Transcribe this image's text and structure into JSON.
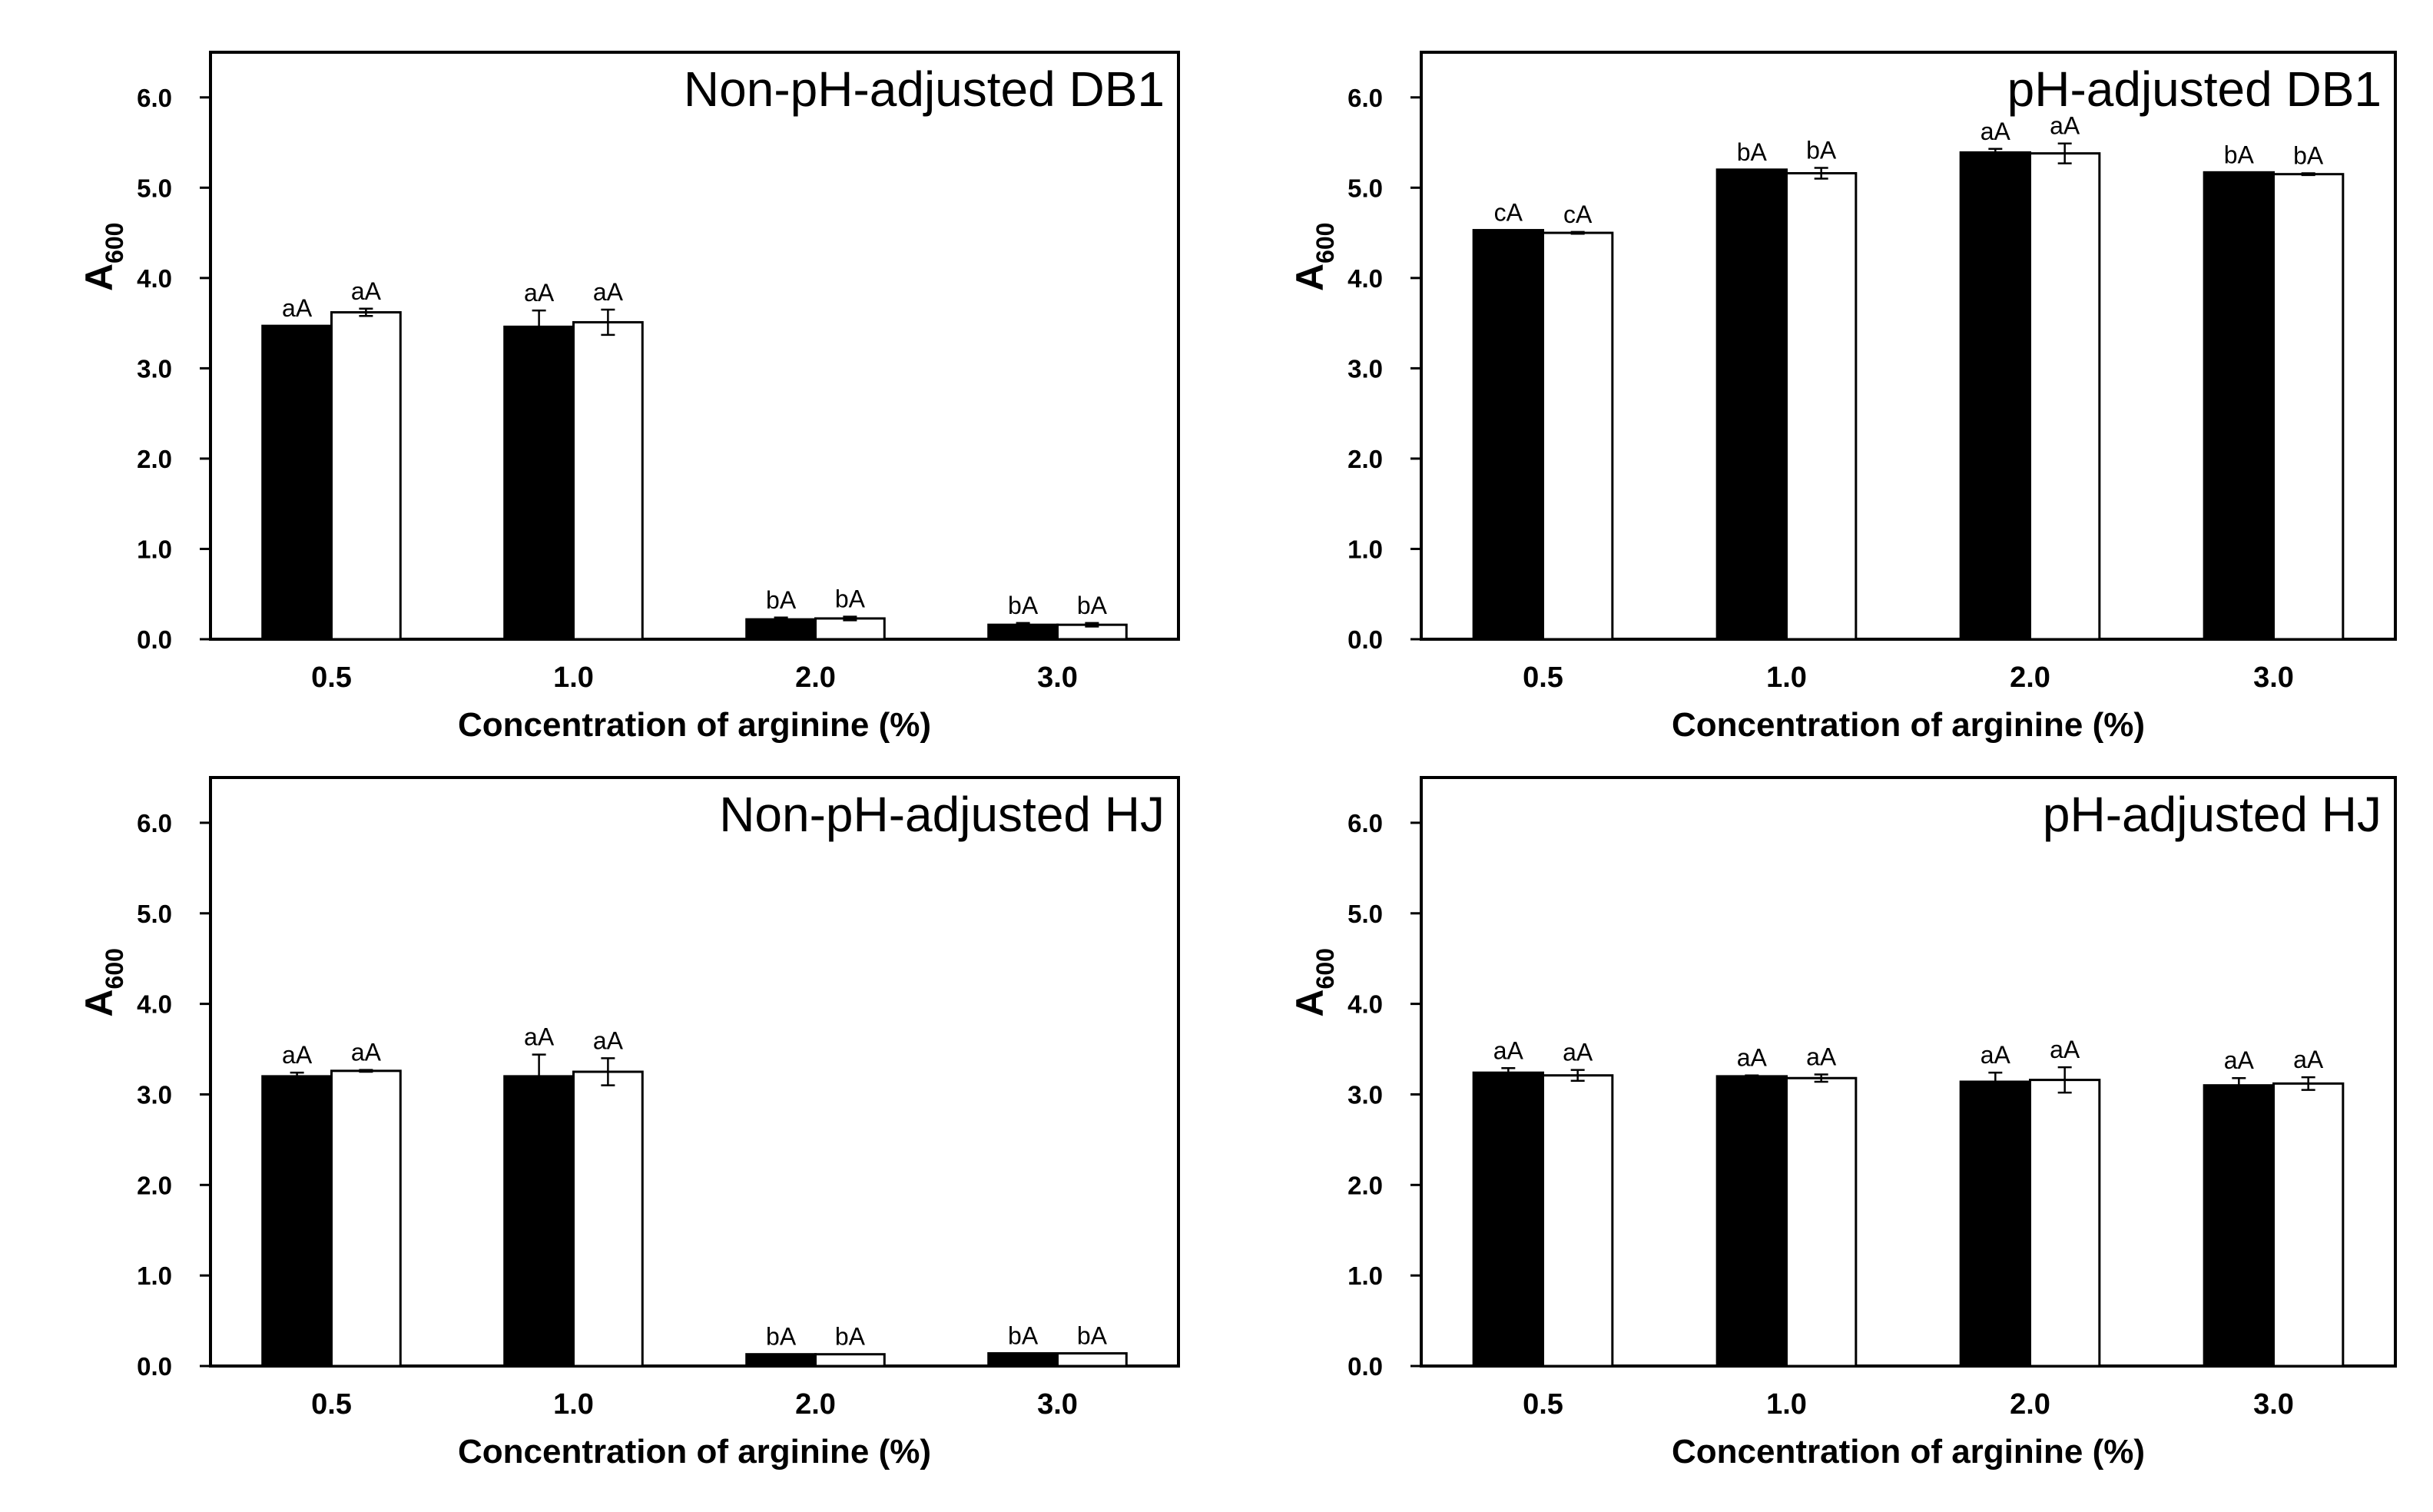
{
  "chart_data": [
    {
      "type": "bar",
      "title": "Non-pH-adjusted DB1",
      "categories": [
        "0.5",
        "1.0",
        "2.0",
        "3.0"
      ],
      "xlabel": "Concentration of arginine (%)",
      "ylabel_main": "A",
      "ylabel_sub": "600",
      "ylim": [
        0,
        6.5
      ],
      "yticks": [
        "0.0",
        "1.0",
        "2.0",
        "3.0",
        "4.0",
        "5.0",
        "6.0"
      ],
      "series": [
        {
          "name": "filled",
          "color": "#000000",
          "values": [
            3.47,
            3.46,
            0.22,
            0.16
          ],
          "errors": [
            0.0,
            0.18,
            0.02,
            0.02
          ],
          "labels": [
            "aA",
            "aA",
            "bA",
            "bA"
          ]
        },
        {
          "name": "open",
          "color": "#ffffff",
          "values": [
            3.62,
            3.51,
            0.23,
            0.16
          ],
          "errors": [
            0.04,
            0.14,
            0.02,
            0.02
          ],
          "labels": [
            "aA",
            "aA",
            "bA",
            "bA"
          ]
        }
      ]
    },
    {
      "type": "bar",
      "title": "pH-adjusted DB1",
      "categories": [
        "0.5",
        "1.0",
        "2.0",
        "3.0"
      ],
      "xlabel": "Concentration of arginine (%)",
      "ylabel_main": "A",
      "ylabel_sub": "600",
      "ylim": [
        0,
        6.5
      ],
      "yticks": [
        "0.0",
        "1.0",
        "2.0",
        "3.0",
        "4.0",
        "5.0",
        "6.0"
      ],
      "series": [
        {
          "name": "filled",
          "color": "#000000",
          "values": [
            4.53,
            5.2,
            5.39,
            5.17
          ],
          "errors": [
            0.0,
            0.0,
            0.04,
            0.0
          ],
          "labels": [
            "cA",
            "bA",
            "aA",
            "bA"
          ]
        },
        {
          "name": "open",
          "color": "#ffffff",
          "values": [
            4.5,
            5.16,
            5.38,
            5.15
          ],
          "errors": [
            0.01,
            0.06,
            0.11,
            0.01
          ],
          "labels": [
            "cA",
            "bA",
            "aA",
            "bA"
          ]
        }
      ]
    },
    {
      "type": "bar",
      "title": "Non-pH-adjusted HJ",
      "categories": [
        "0.5",
        "1.0",
        "2.0",
        "3.0"
      ],
      "xlabel": "Concentration of arginine (%)",
      "ylabel_main": "A",
      "ylabel_sub": "600",
      "ylim": [
        0,
        6.5
      ],
      "yticks": [
        "0.0",
        "1.0",
        "2.0",
        "3.0",
        "4.0",
        "5.0",
        "6.0"
      ],
      "series": [
        {
          "name": "filled",
          "color": "#000000",
          "values": [
            3.2,
            3.2,
            0.13,
            0.14
          ],
          "errors": [
            0.04,
            0.24,
            0.0,
            0.0
          ],
          "labels": [
            "aA",
            "aA",
            "bA",
            "bA"
          ]
        },
        {
          "name": "open",
          "color": "#ffffff",
          "values": [
            3.26,
            3.25,
            0.13,
            0.14
          ],
          "errors": [
            0.01,
            0.15,
            0.0,
            0.0
          ],
          "labels": [
            "aA",
            "aA",
            "bA",
            "bA"
          ]
        }
      ]
    },
    {
      "type": "bar",
      "title": "pH-adjusted HJ",
      "categories": [
        "0.5",
        "1.0",
        "2.0",
        "3.0"
      ],
      "xlabel": "Concentration of arginine (%)",
      "ylabel_main": "A",
      "ylabel_sub": "600",
      "ylim": [
        0,
        6.5
      ],
      "yticks": [
        "0.0",
        "1.0",
        "2.0",
        "3.0",
        "4.0",
        "5.0",
        "6.0"
      ],
      "series": [
        {
          "name": "filled",
          "color": "#000000",
          "values": [
            3.24,
            3.2,
            3.14,
            3.1
          ],
          "errors": [
            0.05,
            0.01,
            0.1,
            0.08
          ],
          "labels": [
            "aA",
            "aA",
            "aA",
            "aA"
          ]
        },
        {
          "name": "open",
          "color": "#ffffff",
          "values": [
            3.21,
            3.18,
            3.16,
            3.12
          ],
          "errors": [
            0.06,
            0.04,
            0.14,
            0.07
          ],
          "labels": [
            "aA",
            "aA",
            "aA",
            "aA"
          ]
        }
      ]
    }
  ]
}
